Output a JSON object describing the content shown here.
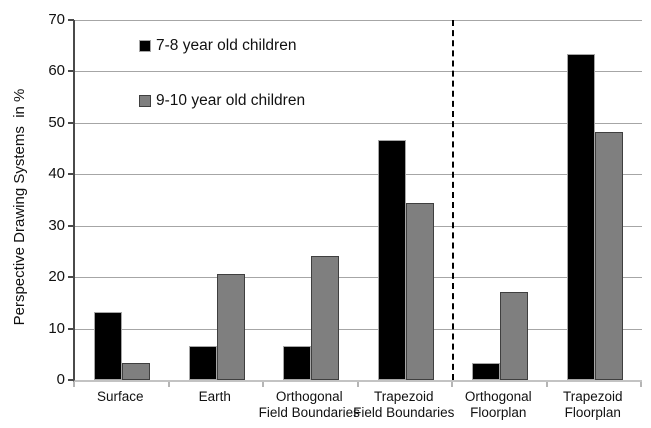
{
  "chart_data": {
    "type": "bar",
    "title": "",
    "ylabel": "Perspective Drawing Systems  in %",
    "xlabel": "",
    "ylim": [
      0,
      70
    ],
    "yticks": [
      0,
      10,
      20,
      30,
      40,
      50,
      60,
      70
    ],
    "grid": true,
    "legend_position": "inside-top-left",
    "categories": [
      "Surface",
      "Earth",
      "Orthogonal\nField Boundaries",
      "Trapezoid\nField Boundaries",
      "Orthogonal\nFloorplan",
      "Trapezoid\nFloorplan"
    ],
    "series": [
      {
        "name": "7-8 year old children",
        "color": "#000000",
        "border_color": "#a6a6a6",
        "values": [
          13.3,
          6.7,
          6.7,
          46.7,
          3.3,
          63.3
        ]
      },
      {
        "name": "9-10 year old children",
        "color": "#7f7f7f",
        "border_color": "#3f3f3f",
        "values": [
          3.4,
          20.7,
          24.1,
          34.5,
          17.2,
          48.3
        ]
      }
    ],
    "divider_after_category_index": 4,
    "divider_style": "vertical dashed black line separating field-boundary tasks from floorplan tasks"
  },
  "colors": {
    "background": "#ffffff",
    "gridline": "#a6a6a6",
    "y_axis_line": "#4a4a4a",
    "x_axis_line": "#c3c3c3",
    "text": "#111111"
  }
}
